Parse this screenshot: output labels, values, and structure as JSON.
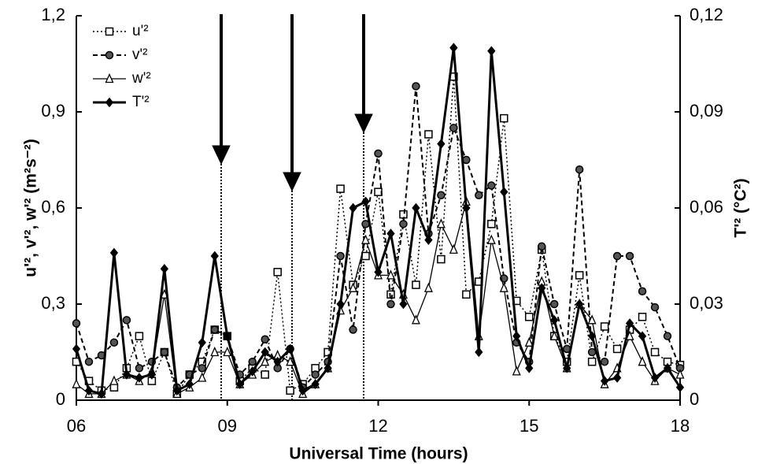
{
  "chart_data": {
    "type": "line",
    "x_label": "Universal Time (hours)",
    "y_label": "u'², v'², w'² (m²s⁻²)",
    "y2_label": "T'² (°C²)",
    "legend": "upper left",
    "grid": false,
    "xlim": [
      6,
      18
    ],
    "xticks": [
      {
        "value": 6,
        "label": "06"
      },
      {
        "value": 9,
        "label": "09"
      },
      {
        "value": 12,
        "label": "12"
      },
      {
        "value": 15,
        "label": "15"
      },
      {
        "value": 18,
        "label": "18"
      }
    ],
    "ylim": [
      0,
      1.2
    ],
    "yticks": [
      0,
      {
        "value": 0.3,
        "label": "0,3"
      },
      {
        "value": 0.6,
        "label": "0,6"
      },
      {
        "value": 0.9,
        "label": "0,9"
      },
      {
        "value": 1.2,
        "label": "1,2"
      }
    ],
    "y2lim": [
      0,
      0.12
    ],
    "y2ticks": [
      0,
      {
        "value": 0.03,
        "label": "0,03"
      },
      {
        "value": 0.06,
        "label": "0,06"
      },
      {
        "value": 0.09,
        "label": "0,09"
      },
      {
        "value": 0.12,
        "label": "0,12"
      }
    ],
    "x": [
      6,
      6.25,
      6.5,
      6.75,
      7,
      7.25,
      7.5,
      7.75,
      8,
      8.25,
      8.5,
      8.75,
      9,
      9.25,
      9.5,
      9.75,
      10,
      10.25,
      10.5,
      10.75,
      11,
      11.25,
      11.5,
      11.75,
      12,
      12.25,
      12.5,
      12.75,
      13,
      13.25,
      13.5,
      13.75,
      14,
      14.25,
      14.5,
      14.75,
      15,
      15.25,
      15.5,
      15.75,
      16,
      16.25,
      16.5,
      16.75,
      17,
      17.25,
      17.5,
      17.75,
      18
    ],
    "series": [
      {
        "name": "u'²",
        "color": "#000000",
        "dash": "dotted",
        "marker": "square",
        "width": 1.5,
        "values": [
          0.12,
          0.06,
          0.03,
          0.04,
          0.1,
          0.2,
          0.06,
          0.15,
          0.02,
          0.08,
          0.12,
          0.22,
          0.2,
          0.06,
          0.1,
          0.08,
          0.4,
          0.03,
          0.05,
          0.1,
          0.15,
          0.66,
          0.36,
          0.45,
          0.65,
          0.33,
          0.58,
          0.36,
          0.83,
          0.44,
          1.01,
          0.33,
          0.37,
          0.55,
          0.88,
          0.31,
          0.26,
          0.47,
          0.2,
          0.12,
          0.39,
          0.12,
          0.23,
          0.16,
          0.22,
          0.26,
          0.15,
          0.12,
          0.11
        ]
      },
      {
        "name": "v'²",
        "color": "#000000",
        "dash": "dashed",
        "marker": "circle",
        "width": 2,
        "values": [
          0.24,
          0.12,
          0.14,
          0.18,
          0.25,
          0.1,
          0.12,
          0.15,
          0.04,
          0.08,
          0.1,
          0.22,
          0.2,
          0.08,
          0.12,
          0.19,
          0.1,
          0.16,
          0.04,
          0.08,
          0.12,
          0.45,
          0.22,
          0.55,
          0.77,
          0.3,
          0.55,
          0.98,
          0.52,
          0.64,
          0.85,
          0.75,
          0.64,
          0.67,
          0.38,
          0.18,
          0.12,
          0.48,
          0.3,
          0.16,
          0.72,
          0.15,
          0.12,
          0.45,
          0.45,
          0.34,
          0.29,
          0.2,
          0.1
        ]
      },
      {
        "name": "w'²",
        "color": "#000000",
        "dash": "solid",
        "marker": "triangle",
        "width": 1.3,
        "values": [
          0.05,
          0.02,
          0.02,
          0.06,
          0.08,
          0.06,
          0.09,
          0.33,
          0.02,
          0.04,
          0.07,
          0.15,
          0.15,
          0.05,
          0.08,
          0.12,
          0.14,
          0.12,
          0.02,
          0.05,
          0.1,
          0.28,
          0.35,
          0.5,
          0.39,
          0.39,
          0.33,
          0.25,
          0.35,
          0.55,
          0.47,
          0.62,
          0.2,
          0.5,
          0.35,
          0.09,
          0.18,
          0.37,
          0.2,
          0.1,
          0.3,
          0.25,
          0.05,
          0.1,
          0.2,
          0.12,
          0.06,
          0.1,
          0.08
        ]
      },
      {
        "name": "T'²",
        "color": "#000000",
        "dash": "solid",
        "marker": "diamond",
        "width": 3,
        "axis": "y2",
        "values": [
          0.016,
          0.003,
          0.002,
          0.046,
          0.008,
          0.007,
          0.008,
          0.041,
          0.003,
          0.005,
          0.018,
          0.045,
          0.02,
          0.005,
          0.009,
          0.015,
          0.012,
          0.016,
          0.003,
          0.005,
          0.01,
          0.03,
          0.06,
          0.062,
          0.04,
          0.052,
          0.03,
          0.06,
          0.05,
          0.08,
          0.11,
          0.06,
          0.015,
          0.109,
          0.065,
          0.02,
          0.01,
          0.035,
          0.025,
          0.01,
          0.03,
          0.02,
          0.006,
          0.007,
          0.024,
          0.02,
          0.007,
          0.01,
          0.004
        ]
      }
    ]
  }
}
